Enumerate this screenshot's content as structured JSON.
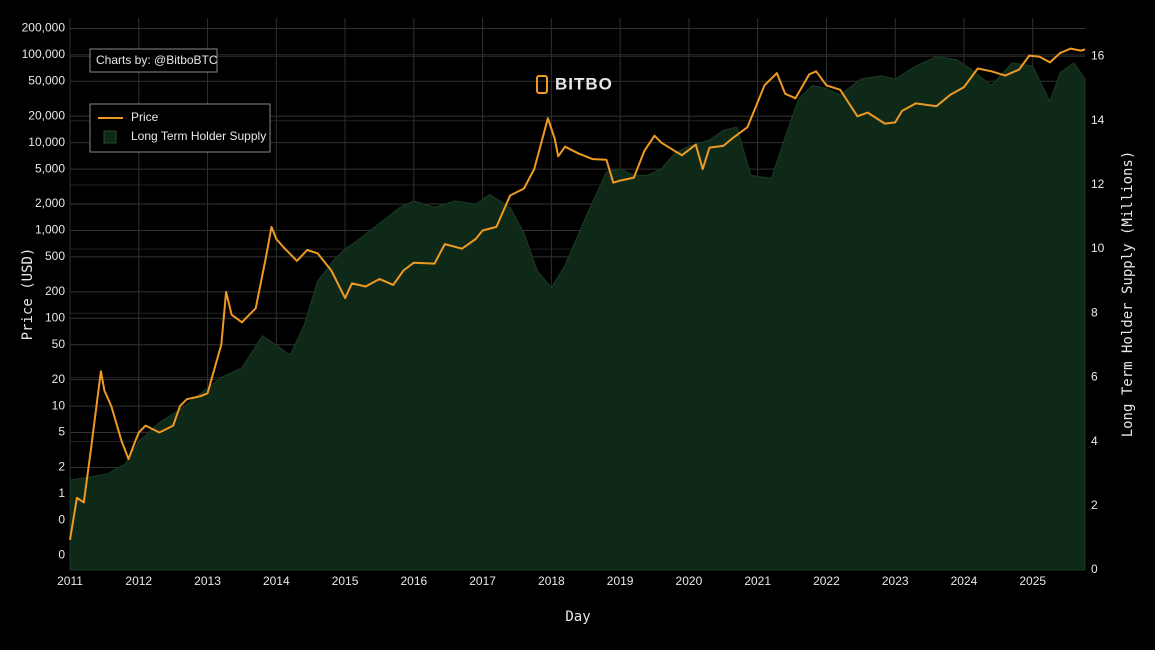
{
  "chart_data": {
    "type": "line",
    "brand": "BITBO",
    "credit": "Charts by: @BitboBTC",
    "x_label": "Day",
    "y_label": "Price (USD)",
    "y2_label": "Long Term Holder Supply (Millions)",
    "ylog": true,
    "grid": true,
    "legend": "upper left",
    "xlim": [
      2011,
      2025.76
    ],
    "xticks": [
      2011,
      2012,
      2013,
      2014,
      2015,
      2016,
      2017,
      2018,
      2019,
      2020,
      2021,
      2022,
      2023,
      2024,
      2025
    ],
    "ylim": [
      0.136,
      263000
    ],
    "yticks": [
      {
        "value": 200000,
        "label": "200,000"
      },
      {
        "value": 100000,
        "label": "100,000"
      },
      {
        "value": 50000,
        "label": "50,000"
      },
      {
        "value": 20000,
        "label": "20,000"
      },
      {
        "value": 10000,
        "label": "10,000"
      },
      {
        "value": 5000,
        "label": "5,000"
      },
      {
        "value": 2000,
        "label": "2,000"
      },
      {
        "value": 1000,
        "label": "1,000"
      },
      500,
      200,
      100,
      50,
      20,
      10,
      5,
      2,
      1,
      {
        "value": 0.5,
        "label": "0"
      },
      {
        "value": 0.2,
        "label": "0"
      }
    ],
    "y2lim": [
      0,
      17.2
    ],
    "y2ticks": [
      0,
      2,
      4,
      6,
      8,
      10,
      12,
      14,
      16
    ],
    "series": [
      {
        "name": "Price",
        "color": "#ee9a22",
        "x": [
          2011.0,
          2011.1,
          2011.2,
          2011.3,
          2011.45,
          2011.5,
          2011.6,
          2011.75,
          2011.85,
          2011.95,
          2012.0,
          2012.1,
          2012.3,
          2012.5,
          2012.6,
          2012.7,
          2012.9,
          2013.0,
          2013.2,
          2013.27,
          2013.35,
          2013.5,
          2013.7,
          2013.85,
          2013.93,
          2014.0,
          2014.1,
          2014.3,
          2014.45,
          2014.6,
          2014.8,
          2015.0,
          2015.1,
          2015.3,
          2015.5,
          2015.7,
          2015.85,
          2016.0,
          2016.3,
          2016.45,
          2016.7,
          2016.9,
          2017.0,
          2017.2,
          2017.4,
          2017.6,
          2017.75,
          2017.95,
          2018.05,
          2018.1,
          2018.2,
          2018.4,
          2018.6,
          2018.8,
          2018.9,
          2019.0,
          2019.2,
          2019.35,
          2019.5,
          2019.6,
          2019.8,
          2019.9,
          2020.1,
          2020.2,
          2020.3,
          2020.5,
          2020.65,
          2020.85,
          2021.0,
          2021.1,
          2021.28,
          2021.4,
          2021.55,
          2021.75,
          2021.85,
          2022.0,
          2022.2,
          2022.45,
          2022.6,
          2022.85,
          2023.0,
          2023.1,
          2023.3,
          2023.6,
          2023.8,
          2024.0,
          2024.2,
          2024.4,
          2024.6,
          2024.8,
          2024.95,
          2025.1,
          2025.25,
          2025.4,
          2025.55,
          2025.7,
          2025.76
        ],
        "values": [
          0.3,
          0.9,
          0.8,
          3,
          25,
          15,
          10,
          4,
          2.5,
          4,
          5,
          6,
          5,
          6,
          10,
          12,
          13,
          14,
          50,
          200,
          110,
          90,
          130,
          500,
          1100,
          800,
          650,
          450,
          600,
          550,
          350,
          170,
          250,
          230,
          280,
          240,
          350,
          430,
          420,
          700,
          620,
          800,
          1000,
          1100,
          2500,
          3000,
          5000,
          19000,
          11000,
          7000,
          9000,
          7500,
          6500,
          6400,
          3500,
          3700,
          4000,
          8000,
          12000,
          10000,
          8000,
          7200,
          9500,
          5000,
          8800,
          9200,
          11500,
          15000,
          29000,
          45000,
          62000,
          36000,
          32000,
          60000,
          65000,
          45000,
          40000,
          20000,
          22000,
          16500,
          17000,
          23000,
          28000,
          26000,
          35000,
          43000,
          70000,
          65000,
          58000,
          68000,
          98000,
          95000,
          82000,
          105000,
          118000,
          112000,
          115000
        ]
      },
      {
        "name": "Long Term Holder Supply",
        "color": "#0f2918",
        "axis": "y2",
        "fill": true,
        "x": [
          2011.0,
          2011.3,
          2011.55,
          2011.8,
          2012.0,
          2012.3,
          2012.6,
          2012.9,
          2013.2,
          2013.5,
          2013.8,
          2014.0,
          2014.2,
          2014.4,
          2014.6,
          2014.85,
          2015.0,
          2015.2,
          2015.5,
          2015.8,
          2016.0,
          2016.3,
          2016.6,
          2016.9,
          2017.1,
          2017.4,
          2017.6,
          2017.8,
          2018.0,
          2018.2,
          2018.5,
          2018.8,
          2019.0,
          2019.2,
          2019.4,
          2019.6,
          2019.8,
          2020.0,
          2020.3,
          2020.5,
          2020.7,
          2020.9,
          2021.2,
          2021.4,
          2021.6,
          2021.8,
          2022.0,
          2022.2,
          2022.5,
          2022.8,
          2023.0,
          2023.3,
          2023.6,
          2023.9,
          2024.1,
          2024.4,
          2024.7,
          2025.0,
          2025.25,
          2025.4,
          2025.6,
          2025.76
        ],
        "values": [
          2.8,
          2.9,
          3.0,
          3.3,
          4.0,
          4.6,
          5.0,
          5.5,
          6.0,
          6.3,
          7.3,
          7.0,
          6.7,
          7.6,
          9.0,
          9.7,
          10.0,
          10.3,
          10.8,
          11.3,
          11.5,
          11.3,
          11.5,
          11.4,
          11.7,
          11.3,
          10.5,
          9.3,
          8.8,
          9.5,
          11.0,
          12.4,
          12.5,
          12.3,
          12.3,
          12.5,
          13.0,
          13.2,
          13.4,
          13.7,
          13.8,
          12.3,
          12.2,
          13.5,
          14.7,
          15.1,
          15.0,
          14.8,
          15.3,
          15.4,
          15.3,
          15.7,
          16.0,
          15.9,
          15.6,
          15.1,
          15.8,
          15.7,
          14.6,
          15.5,
          15.8,
          15.3
        ]
      }
    ]
  }
}
